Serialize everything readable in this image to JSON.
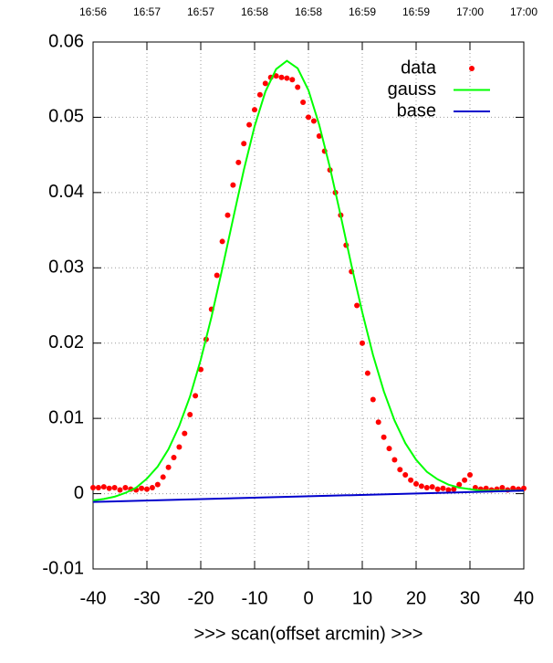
{
  "chart_data": {
    "type": "line",
    "xlabel": ">>> scan(offset arcmin) >>>",
    "xlim": [
      -40,
      40
    ],
    "xticks": [
      -40,
      -30,
      -20,
      -10,
      0,
      10,
      20,
      30,
      40
    ],
    "ylim": [
      -0.01,
      0.06
    ],
    "yticks": [
      -0.01,
      0,
      0.01,
      0.02,
      0.03,
      0.04,
      0.05,
      0.06
    ],
    "x2ticks": [
      {
        "value": -40,
        "label": "16:56"
      },
      {
        "value": -30,
        "label": "16:57"
      },
      {
        "value": -20,
        "label": "16:57"
      },
      {
        "value": -10,
        "label": "16:58"
      },
      {
        "value": 0,
        "label": "16:58"
      },
      {
        "value": 10,
        "label": "16:59"
      },
      {
        "value": 20,
        "label": "16:59"
      },
      {
        "value": 30,
        "label": "17:00"
      },
      {
        "value": 40,
        "label": "17:00"
      }
    ],
    "grid": true,
    "legend": "top-right",
    "series": [
      {
        "name": "data",
        "color": "#ff0000",
        "mode": "points",
        "x": [
          -40,
          -39,
          -38,
          -37,
          -36,
          -35,
          -34,
          -33,
          -32,
          -31,
          -30,
          -29,
          -28,
          -27,
          -26,
          -25,
          -24,
          -23,
          -22,
          -21,
          -20,
          -19,
          -18,
          -17,
          -16,
          -15,
          -14,
          -13,
          -12,
          -11,
          -10,
          -9,
          -8,
          -7,
          -6,
          -5,
          -4,
          -3,
          -2,
          -1,
          0,
          1,
          2,
          3,
          4,
          5,
          6,
          7,
          8,
          9,
          10,
          11,
          12,
          13,
          14,
          15,
          16,
          17,
          18,
          19,
          20,
          21,
          22,
          23,
          24,
          25,
          26,
          27,
          28,
          29,
          30,
          31,
          32,
          33,
          34,
          35,
          36,
          37,
          38,
          39,
          40
        ],
        "values": [
          0.0008,
          0.0008,
          0.0009,
          0.0007,
          0.0008,
          0.0005,
          0.0008,
          0.0006,
          0.0005,
          0.0007,
          0.0006,
          0.0008,
          0.0012,
          0.0022,
          0.0035,
          0.0048,
          0.0062,
          0.008,
          0.0105,
          0.013,
          0.0165,
          0.0205,
          0.0245,
          0.029,
          0.0335,
          0.037,
          0.041,
          0.044,
          0.0465,
          0.049,
          0.051,
          0.053,
          0.0545,
          0.0553,
          0.0555,
          0.0553,
          0.0552,
          0.055,
          0.054,
          0.052,
          0.05,
          0.0495,
          0.0475,
          0.0455,
          0.043,
          0.04,
          0.037,
          0.033,
          0.0295,
          0.025,
          0.02,
          0.016,
          0.0125,
          0.0095,
          0.0075,
          0.006,
          0.0045,
          0.0032,
          0.0025,
          0.0018,
          0.0013,
          0.001,
          0.0008,
          0.0009,
          0.0006,
          0.0007,
          0.0005,
          0.0006,
          0.0012,
          0.0018,
          0.0025,
          0.0008,
          0.0006,
          0.0007,
          0.0005,
          0.0006,
          0.0008,
          0.0005,
          0.0007,
          0.0006,
          0.0007
        ]
      },
      {
        "name": "gauss",
        "color": "#00ff00",
        "mode": "line",
        "x": [
          -40,
          -38,
          -36,
          -34,
          -32,
          -30,
          -28,
          -26,
          -24,
          -22,
          -20,
          -18,
          -16,
          -14,
          -12,
          -10,
          -8,
          -6,
          -4,
          -2,
          0,
          2,
          4,
          6,
          8,
          10,
          12,
          14,
          16,
          18,
          20,
          22,
          24,
          26,
          28,
          30,
          32,
          34,
          36,
          38,
          40
        ],
        "values": [
          -0.0009,
          -0.0007,
          -0.0004,
          0.0001,
          0.0008,
          0.002,
          0.0036,
          0.0059,
          0.009,
          0.0129,
          0.0178,
          0.0235,
          0.0299,
          0.0365,
          0.043,
          0.0488,
          0.0534,
          0.0564,
          0.0575,
          0.0565,
          0.0536,
          0.049,
          0.0433,
          0.0369,
          0.0303,
          0.0241,
          0.0184,
          0.0136,
          0.0097,
          0.0067,
          0.0045,
          0.0029,
          0.0019,
          0.0012,
          0.0008,
          0.0006,
          0.0004,
          0.0004,
          0.0004,
          0.0004,
          0.0004
        ]
      },
      {
        "name": "base",
        "color": "#0000cc",
        "mode": "line",
        "x": [
          -40,
          40
        ],
        "values": [
          -0.0011,
          0.0004
        ]
      }
    ]
  }
}
